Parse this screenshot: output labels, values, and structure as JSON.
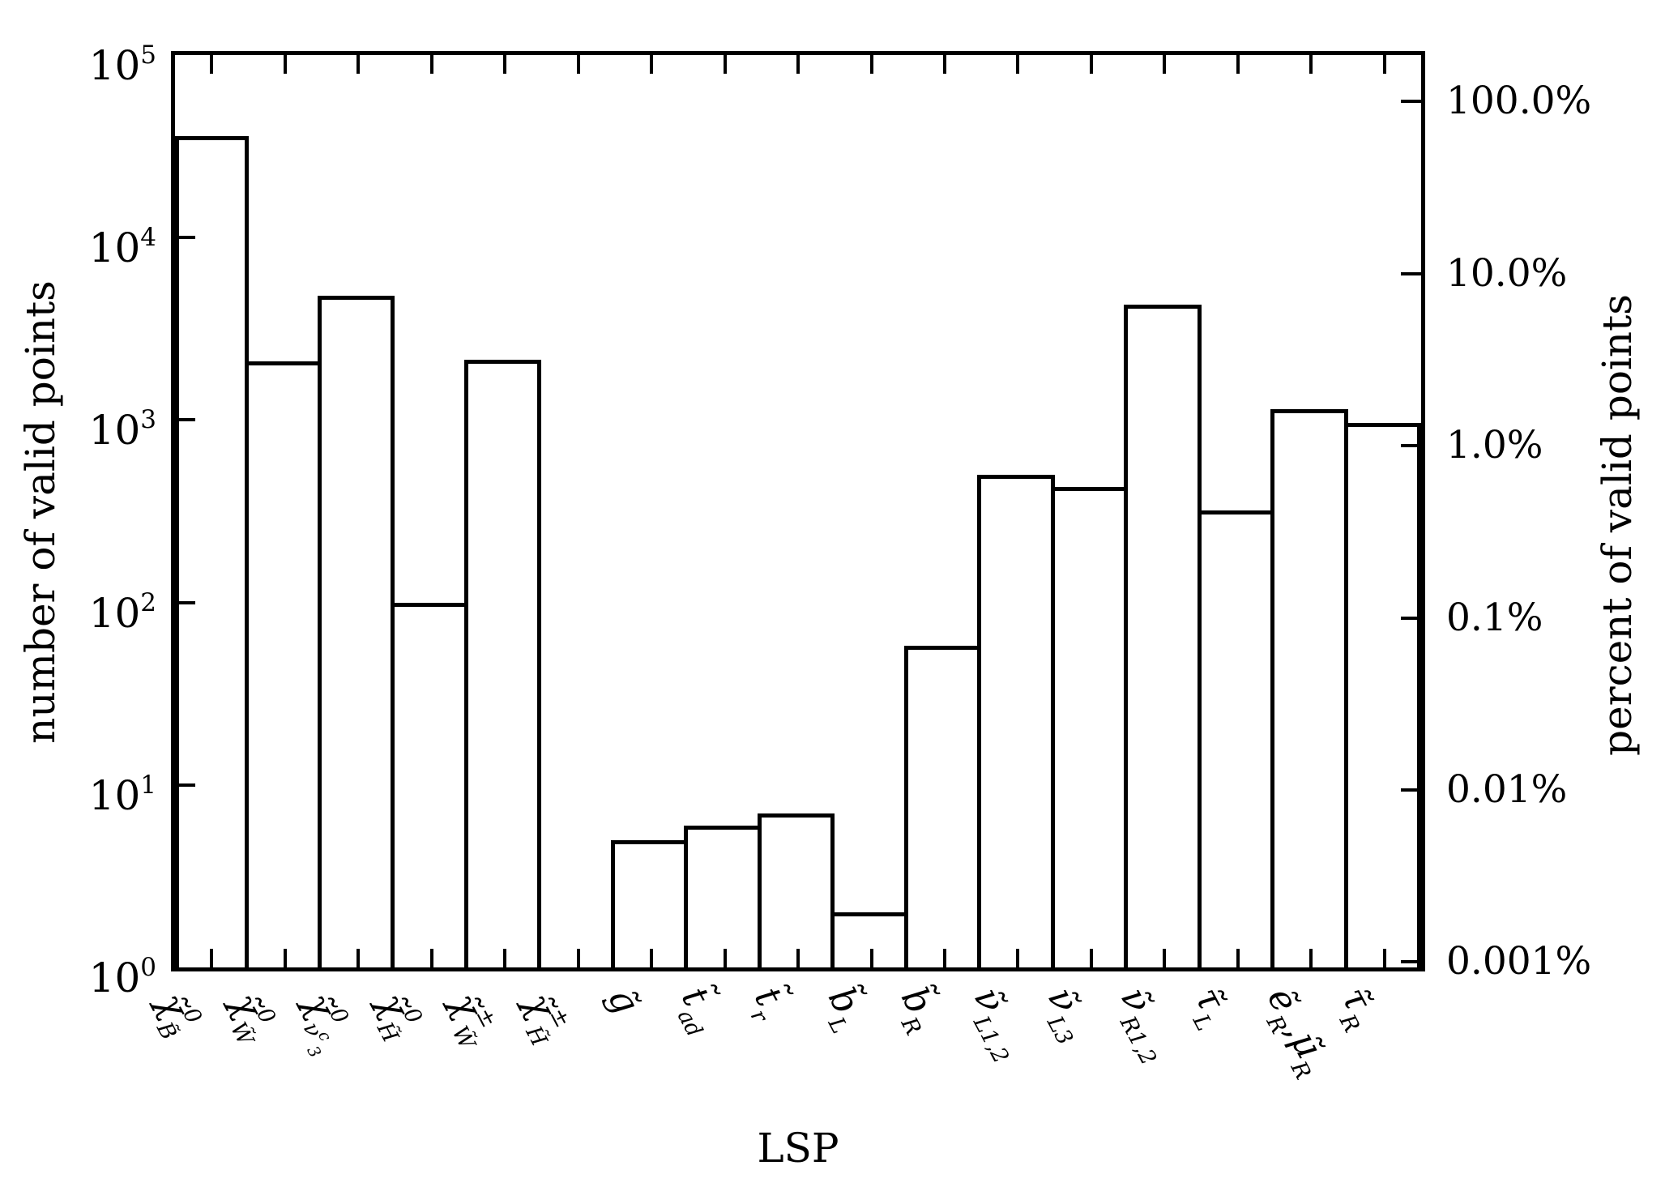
{
  "chart_data": {
    "type": "bar",
    "title": "",
    "xlabel": "LSP",
    "ylabel": "number of valid points",
    "y2label": "percent of valid points",
    "categories_html": [
      "χ̃<sup>0</sup><sub>B̃</sub>",
      "χ̃<sup>0</sup><sub>W̃</sub>",
      "χ̃<sup>0</sup><sub>ν<sup>c</sup><sub>3</sub></sub>",
      "χ̃<sup>0</sup><sub>H̃</sub>",
      "χ̃<sup>±</sup><sub>W̃</sub>",
      "χ̃<sup>±</sup><sub>H̃</sub>",
      "g̃",
      "t̃<sub>ad</sub>",
      "t̃<sub>r</sub>",
      "b̃<sub>L</sub>",
      "b̃<sub>R</sub>",
      "ν̃<sub>L1,2</sub>",
      "ν̃<sub>L3</sub>",
      "ν̃<sub>R1,2</sub>",
      "τ̃<sub>L</sub>",
      "ẽ<sub>R</sub>,μ̃<sub>R</sub>",
      "τ̃<sub>R</sub>"
    ],
    "values": [
      36000,
      2100,
      4800,
      100,
      2150,
      0,
      5,
      6,
      7,
      2,
      58,
      500,
      430,
      4300,
      320,
      1150,
      960
    ],
    "ylim": [
      1,
      100000
    ],
    "yticks_html": [
      "10<sup>0</sup>",
      "10<sup>1</sup>",
      "10<sup>2</sup>",
      "10<sup>3</sup>",
      "10<sup>4</sup>",
      "10<sup>5</sup>"
    ],
    "ytick_values": [
      1,
      10,
      100,
      1000,
      10000,
      100000
    ],
    "y2ticks": [
      "100.0%",
      "10.0%",
      "1.0%",
      "0.1%",
      "0.01%",
      "0.001%"
    ],
    "y2tick_values": [
      100,
      10,
      1,
      0.1,
      0.01,
      0.001
    ],
    "y2lim": [
      0.00093,
      186
    ],
    "grid": false,
    "legend": null,
    "bar_fill": "#ffffff",
    "line_color": "#000000",
    "background": "#ffffff"
  }
}
